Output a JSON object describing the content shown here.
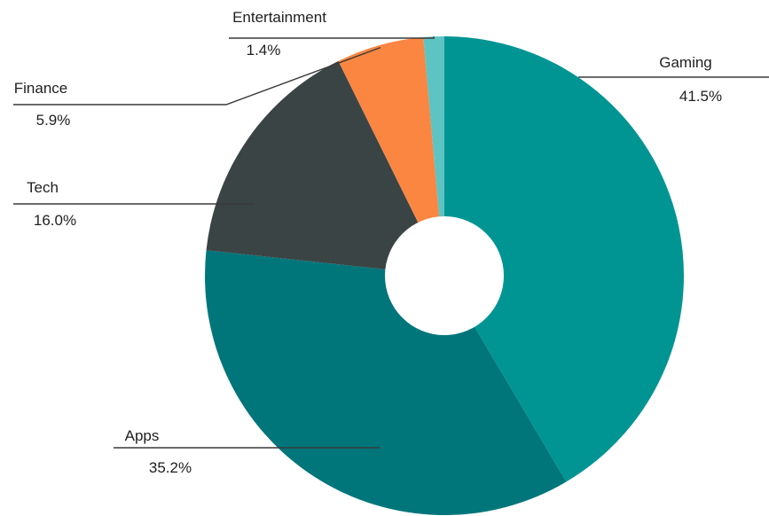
{
  "chart_data": {
    "type": "pie",
    "donut": true,
    "title": "",
    "legend": "none",
    "slices": [
      {
        "name": "Gaming",
        "value": 41.5,
        "label": "41.5%",
        "color": "#009593"
      },
      {
        "name": "Apps",
        "value": 35.2,
        "label": "35.2%",
        "color": "#00767b"
      },
      {
        "name": "Tech",
        "value": 16.0,
        "label": "16.0%",
        "color": "#3b4445"
      },
      {
        "name": "Finance",
        "value": 5.9,
        "label": "5.9%",
        "color": "#fb8641"
      },
      {
        "name": "Entertainment",
        "value": 1.4,
        "label": "1.4%",
        "color": "#5dc4c3"
      }
    ]
  }
}
